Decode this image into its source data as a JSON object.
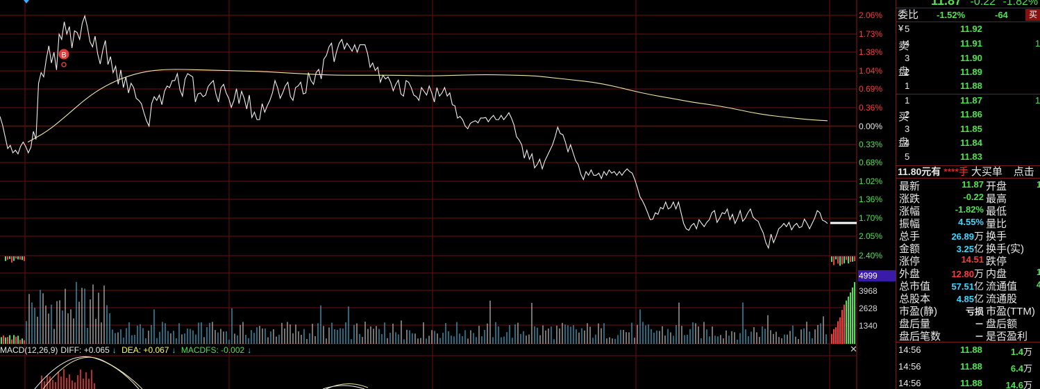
{
  "header": {
    "price": "11.87",
    "change": "-0.22",
    "change_pct": "-1.82%"
  },
  "commission": {
    "label": "委比",
    "ratio": "-1.52%",
    "diff": "-64",
    "btn": "买"
  },
  "orderbook": {
    "sell_label": [
      "卖",
      "盘"
    ],
    "buy_label": [
      "买",
      "盘"
    ],
    "yen": "¥",
    "sell": [
      {
        "level": "5",
        "price": "11.92",
        "vol": ""
      },
      {
        "level": "4",
        "price": "11.91",
        "vol": "1"
      },
      {
        "level": "3",
        "price": "11.90",
        "vol": ""
      },
      {
        "level": "2",
        "price": "11.89",
        "vol": ""
      },
      {
        "level": "1",
        "price": "11.88",
        "vol": ""
      }
    ],
    "buy": [
      {
        "level": "1",
        "price": "11.87",
        "vol": "1"
      },
      {
        "level": "2",
        "price": "11.86",
        "vol": ""
      },
      {
        "level": "3",
        "price": "11.85",
        "vol": ""
      },
      {
        "level": "4",
        "price": "11.84",
        "vol": ""
      },
      {
        "level": "5",
        "price": "11.83",
        "vol": ""
      }
    ]
  },
  "bigorder": {
    "price_text": "11.80元有",
    "stars": "****手",
    "label": "大买单",
    "tail": "点击"
  },
  "quotes": [
    {
      "l": "最新",
      "v": "11.87",
      "u": "",
      "c": "green",
      "r": "开盘"
    },
    {
      "l": "涨跌",
      "v": "-0.22",
      "u": "",
      "c": "green",
      "r": "最高"
    },
    {
      "l": "涨幅",
      "v": "-1.82%",
      "u": "",
      "c": "green",
      "r": "最低"
    },
    {
      "l": "振幅",
      "v": "4.55%",
      "u": "",
      "c": "cyan",
      "r": "量比"
    },
    {
      "l": "总手",
      "v": "26.89",
      "u": "万",
      "c": "cyan",
      "r": "换手"
    },
    {
      "l": "金额",
      "v": "3.25",
      "u": "亿",
      "c": "cyan",
      "r": "换手(实)"
    },
    {
      "l": "涨停",
      "v": "14.51",
      "u": "",
      "c": "red",
      "r": "跌停"
    },
    {
      "l": "外盘",
      "v": "12.80",
      "u": "万",
      "c": "red",
      "r": "内盘"
    },
    {
      "l": "总市值",
      "v": "57.51",
      "u": "亿",
      "c": "cyan",
      "r": "流通值"
    },
    {
      "l": "总股本",
      "v": "4.85",
      "u": "亿",
      "c": "cyan",
      "r": "流通股"
    },
    {
      "l": "市盈(静)",
      "v": "亏损",
      "u": "",
      "c": "white",
      "r": "市盈(TTM)"
    },
    {
      "l": "盘后量",
      "v": "－",
      "u": "",
      "c": "white",
      "r": "盘后额"
    },
    {
      "l": "盘后笔数",
      "v": "－",
      "u": "",
      "c": "white",
      "r": "是否盈利"
    }
  ],
  "quote_side_vals": [
    "1",
    "",
    "",
    "",
    "",
    "",
    "",
    "1",
    "4",
    "",
    "",
    "",
    ""
  ],
  "ticks": [
    {
      "time": "14:56",
      "price": "11.88",
      "vol": "1.4",
      "unit": "万"
    },
    {
      "time": "14:56",
      "price": "11.88",
      "vol": "6.4",
      "unit": "万"
    },
    {
      "time": "14:56",
      "price": "11.88",
      "vol": "14.6",
      "unit": "万"
    }
  ],
  "pct_labels": [
    "2.06%",
    "1.73%",
    "1.38%",
    "1.04%",
    "0.69%",
    "0.36%",
    "0.00%",
    "0.33%",
    "0.68%",
    "1.02%",
    "1.36%",
    "1.70%",
    "2.05%",
    "2.40%"
  ],
  "vol_labels": [
    "4999",
    "3968",
    "2628",
    "1340"
  ],
  "macd": {
    "name": "MACD(12,26,9)",
    "diff": "DIFF: +0.065",
    "dea": "DEA: +0.067",
    "macdfs": "MACDFS: -0.002"
  },
  "signal_marker": "B",
  "chart_data": {
    "type": "line",
    "series": [
      {
        "values": [
          0.18,
          0.02,
          -0.2,
          -0.42,
          -0.36,
          -0.5,
          -0.45,
          -0.52,
          -0.38,
          -0.3,
          -0.38,
          -0.5,
          -0.4,
          -0.1,
          -0.25,
          0.8,
          1.0,
          0.92,
          1.25,
          1.5,
          1.18,
          1.38,
          1.05,
          1.72,
          1.62,
          1.95,
          1.72,
          1.86,
          1.46,
          1.78,
          1.75,
          1.62,
          1.92,
          2.06,
          1.85,
          1.58,
          1.48,
          1.68,
          1.35,
          1.16,
          1.42,
          1.6,
          1.15,
          1.3,
          1.0,
          1.12,
          0.78,
          1.05,
          0.72,
          0.92,
          0.62,
          0.8,
          0.72,
          0.52,
          0.48,
          0.42,
          0.25,
          0.1,
          0.0,
          0.42,
          0.55,
          0.48,
          0.58,
          0.4,
          0.65,
          0.75,
          0.72,
          0.85,
          0.85,
          0.98,
          0.68,
          0.56,
          0.88,
          0.98,
          0.95,
          0.92,
          0.45,
          0.6,
          0.62,
          0.55,
          0.58,
          0.74,
          0.8,
          0.85,
          0.6,
          0.45,
          0.72,
          0.78,
          0.62,
          0.52,
          0.35,
          0.48,
          0.7,
          0.42,
          0.65,
          0.52,
          0.32,
          0.58,
          0.16,
          0.26,
          0.12,
          0.12,
          0.42,
          0.26,
          0.38,
          0.48,
          0.62,
          0.85,
          0.72,
          0.52,
          0.62,
          0.75,
          0.82,
          0.55,
          0.48,
          0.72,
          0.75,
          0.82,
          0.6,
          0.62,
          1.0,
          0.85,
          0.78,
          1.0,
          1.06,
          0.88,
          1.25,
          1.32,
          1.48,
          1.55,
          1.2,
          1.4,
          1.55,
          1.62,
          1.44,
          1.55,
          1.48,
          1.4,
          1.52,
          1.38,
          1.52,
          1.52,
          1.52,
          1.36,
          1.1,
          1.18,
          1.04,
          1.1,
          0.82,
          0.95,
          0.88,
          0.92,
          0.82,
          0.66,
          0.78,
          0.86,
          0.6,
          0.56,
          0.85,
          0.82,
          0.72,
          0.58,
          0.55,
          0.48,
          0.72,
          0.65,
          0.58,
          0.75,
          0.62,
          0.45,
          0.72,
          0.56,
          0.62,
          0.72,
          0.56,
          0.62,
          0.4,
          0.38,
          0.15,
          0.18,
          0.12,
          0.0,
          -0.05,
          0.05,
          0.08,
          0.1,
          0.06,
          0.15,
          0.15,
          0.16,
          0.08,
          0.15,
          0.2,
          0.12,
          0.12,
          0.2,
          0.12,
          0.18,
          0.25,
          0.15,
          0.02,
          -0.2,
          -0.26,
          -0.35,
          -0.6,
          -0.45,
          -0.62,
          -0.52,
          -0.78,
          -0.72,
          -0.62,
          -0.8,
          -0.65,
          -0.55,
          -0.45,
          -0.35,
          -0.2,
          -0.02,
          -0.14,
          -0.16,
          -0.3,
          -0.48,
          -0.35,
          -0.5,
          -0.65,
          -0.72,
          -0.9,
          -1.0,
          -0.85,
          -0.92,
          -0.82,
          -0.92,
          -0.92,
          -0.88,
          -0.98,
          -0.85,
          -0.92,
          -0.82,
          -0.88,
          -0.85,
          -0.92,
          -0.85,
          -0.92,
          -0.85,
          -0.8,
          -0.85,
          -0.88,
          -1.0,
          -1.15,
          -1.32,
          -1.4,
          -1.5,
          -1.62,
          -1.75,
          -1.74,
          -1.62,
          -1.65,
          -1.52,
          -1.55,
          -1.42,
          -1.55,
          -1.52,
          -1.42,
          -1.55,
          -1.42,
          -1.62,
          -1.82,
          -1.92,
          -1.95,
          -1.86,
          -1.82,
          -1.92,
          -1.75,
          -1.82,
          -1.88,
          -1.8,
          -1.75,
          -1.62,
          -1.58,
          -1.8,
          -1.72,
          -1.62,
          -1.64,
          -1.55,
          -1.75,
          -1.65,
          -1.82,
          -1.72,
          -1.58,
          -1.78,
          -1.72,
          -1.62,
          -1.55,
          -1.7,
          -1.75,
          -1.78,
          -1.9,
          -2.0,
          -2.18,
          -2.28,
          -2.02,
          -2.18,
          -2.06,
          -1.92,
          -1.88,
          -1.82,
          -1.88,
          -1.8,
          -1.94,
          -1.86,
          -1.82,
          -1.9,
          -1.88,
          -1.74,
          -1.82,
          -1.92,
          -1.82,
          -1.72,
          -1.58,
          -1.62,
          -1.76,
          -1.78,
          -1.82
        ]
      },
      {
        "values": [
          -0.3,
          -0.1,
          0.2,
          0.52,
          0.76,
          0.92,
          1.02,
          1.06,
          1.06,
          1.05,
          1.04,
          1.03,
          1.02,
          1.0,
          0.98,
          0.96,
          0.95,
          0.95,
          0.95,
          0.95,
          0.94,
          0.94,
          0.95,
          0.96,
          0.96,
          0.95,
          0.94,
          0.9,
          0.86,
          0.82,
          0.75,
          0.66,
          0.58,
          0.52,
          0.45,
          0.4,
          0.34,
          0.26,
          0.2,
          0.16,
          0.12,
          0.1
        ]
      }
    ],
    "markers": [
      {
        "label": "B"
      }
    ]
  }
}
